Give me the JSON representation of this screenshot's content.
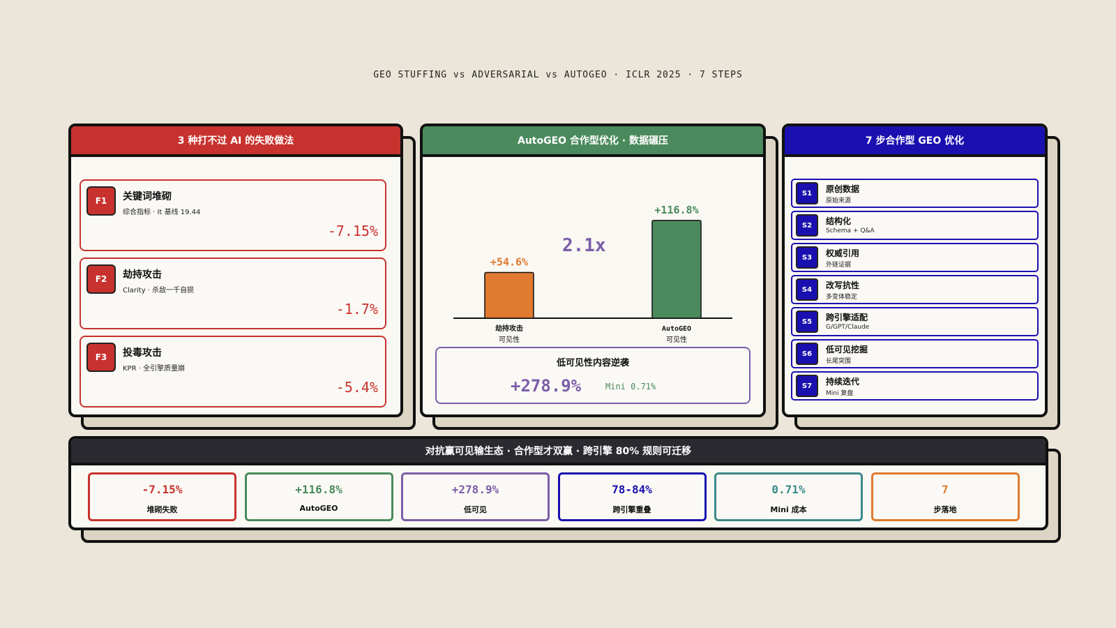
{
  "title": "GEO STUFFING vs ADVERSARIAL vs AUTOGEO · ICLR 2025 · 7 STEPS",
  "failures": {
    "header": "3 种打不过 AI 的失败做法",
    "items": [
      {
        "tag": "F1",
        "title": "关键词堆砌",
        "desc": "综合指标 · It 基线 19.44",
        "value": "-7.15%"
      },
      {
        "tag": "F2",
        "title": "劫持攻击",
        "desc": "Clarity · 杀敌一千自损",
        "value": "-1.7%"
      },
      {
        "tag": "F3",
        "title": "投毒攻击",
        "desc": "KPR · 全引擎质量崩",
        "value": "-5.4%"
      }
    ]
  },
  "middle": {
    "header": "AutoGEO 合作型优化 · 数据碾压",
    "multiplier": "2.1x",
    "callout": {
      "title": "低可见性内容逆袭",
      "value": "+278.9%",
      "note": "Mini 0.71%"
    }
  },
  "chart_data": {
    "type": "bar",
    "categories": [
      "劫持攻击",
      "AutoGEO"
    ],
    "category_sublabels": [
      "可见性",
      "可见性"
    ],
    "values": [
      54.6,
      116.8
    ],
    "value_labels": [
      "+54.6%",
      "+116.8%"
    ],
    "colors": [
      "#e07a30",
      "#4a8a5c"
    ]
  },
  "steps": {
    "header": "7 步合作型 GEO 优化",
    "items": [
      {
        "tag": "S1",
        "title": "原创数据",
        "desc": "原始来源"
      },
      {
        "tag": "S2",
        "title": "结构化",
        "desc": "Schema + Q&A"
      },
      {
        "tag": "S3",
        "title": "权威引用",
        "desc": "外链证据"
      },
      {
        "tag": "S4",
        "title": "改写抗性",
        "desc": "多变体稳定"
      },
      {
        "tag": "S5",
        "title": "跨引擎适配",
        "desc": "G/GPT/Claude"
      },
      {
        "tag": "S6",
        "title": "低可见挖掘",
        "desc": "长尾突围"
      },
      {
        "tag": "S7",
        "title": "持续迭代",
        "desc": "Mini 复盘"
      }
    ]
  },
  "summary": {
    "header": "对抗赢可见输生态 · 合作型才双赢 · 跨引擎 80% 规则可迁移",
    "stats": [
      {
        "value": "-7.15%",
        "label": "堆砌失败",
        "color": "#c8322e"
      },
      {
        "value": "+116.8%",
        "label": "AutoGEO",
        "color": "#4a8a5c"
      },
      {
        "value": "+278.9%",
        "label": "低可见",
        "color": "#7b5ea8"
      },
      {
        "value": "78-84%",
        "label": "跨引擎重叠",
        "color": "#1a10b0"
      },
      {
        "value": "0.71%",
        "label": "Mini 成本",
        "color": "#3a8a8a"
      },
      {
        "value": "7",
        "label": "步落地",
        "color": "#e07a30"
      }
    ]
  }
}
